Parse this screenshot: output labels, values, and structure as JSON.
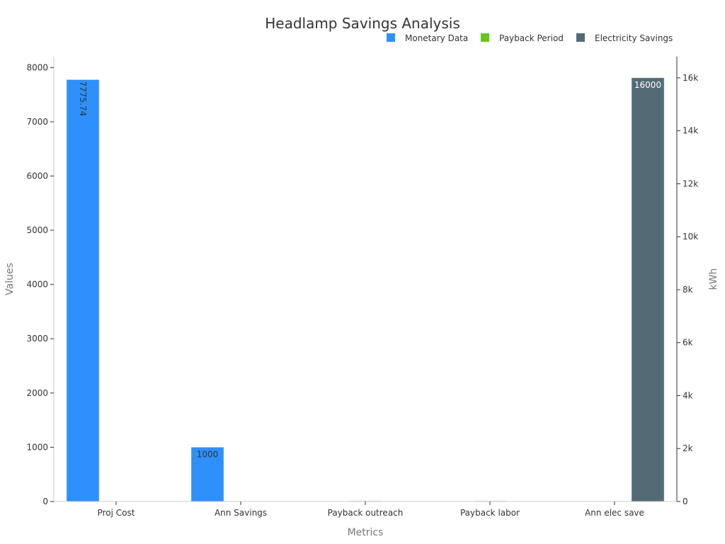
{
  "chart_data": {
    "type": "bar",
    "title": "Headlamp Savings Analysis",
    "xlabel": "Metrics",
    "ylabel": "Values",
    "ylabel_right": "kWh",
    "categories": [
      "Proj Cost",
      "Ann Savings",
      "Payback outreach",
      "Payback labor",
      "Ann elec save"
    ],
    "ylim": [
      0,
      8200
    ],
    "ylim_right": [
      0,
      16800
    ],
    "y_ticks": [
      "0",
      "1000",
      "2000",
      "3000",
      "4000",
      "5000",
      "6000",
      "7000",
      "8000"
    ],
    "y_right_ticks": [
      "0",
      "2k",
      "4k",
      "6k",
      "8k",
      "10k",
      "12k",
      "14k",
      "16k"
    ],
    "legend_position": "top-right",
    "series": [
      {
        "name": "Monetary Data",
        "axis": "left",
        "color": "#2e90fa",
        "values": [
          7775.74,
          1000,
          null,
          null,
          null
        ],
        "labels": [
          "7775.74",
          "1000",
          "",
          "",
          ""
        ]
      },
      {
        "name": "Payback Period",
        "axis": "left",
        "color": "#66c61c",
        "values": [
          null,
          null,
          4,
          3,
          null
        ],
        "labels": [
          "",
          "",
          "",
          "",
          ""
        ]
      },
      {
        "name": "Electricity Savings",
        "axis": "right",
        "color": "#536b75",
        "values": [
          null,
          null,
          null,
          null,
          16000
        ],
        "labels": [
          "",
          "",
          "",
          "",
          "16000"
        ]
      }
    ]
  }
}
